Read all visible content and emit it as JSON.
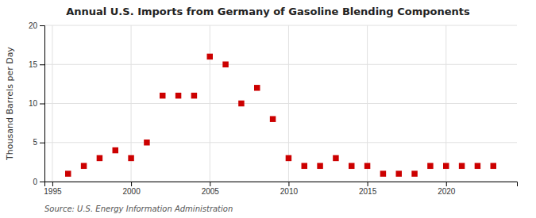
{
  "chart_data": {
    "type": "scatter",
    "title": "Annual U.S. Imports from Germany of Gasoline Blending Components",
    "y_label": "Thousand Barrels per Day",
    "source": "Source: U.S. Energy Information Administration",
    "x": [
      1996,
      1997,
      1998,
      1999,
      2000,
      2001,
      2002,
      2003,
      2004,
      2005,
      2006,
      2007,
      2008,
      2009,
      2010,
      2011,
      2012,
      2013,
      2014,
      2015,
      2016,
      2017,
      2018,
      2019,
      2020,
      2021,
      2022,
      2023
    ],
    "values": [
      1,
      2,
      3,
      4,
      3,
      5,
      11,
      11,
      11,
      16,
      15,
      10,
      12,
      8,
      3,
      2,
      2,
      3,
      2,
      2,
      1,
      1,
      1,
      2,
      2,
      2,
      2,
      2
    ],
    "color": "#cc0000",
    "marker": "square",
    "xlim": [
      1994.5,
      2024.5
    ],
    "xticks": [
      1995,
      2000,
      2005,
      2010,
      2015,
      2020
    ],
    "ylim": [
      0,
      20
    ],
    "yticks": [
      0,
      5,
      10,
      15,
      20
    ],
    "grid": true
  }
}
